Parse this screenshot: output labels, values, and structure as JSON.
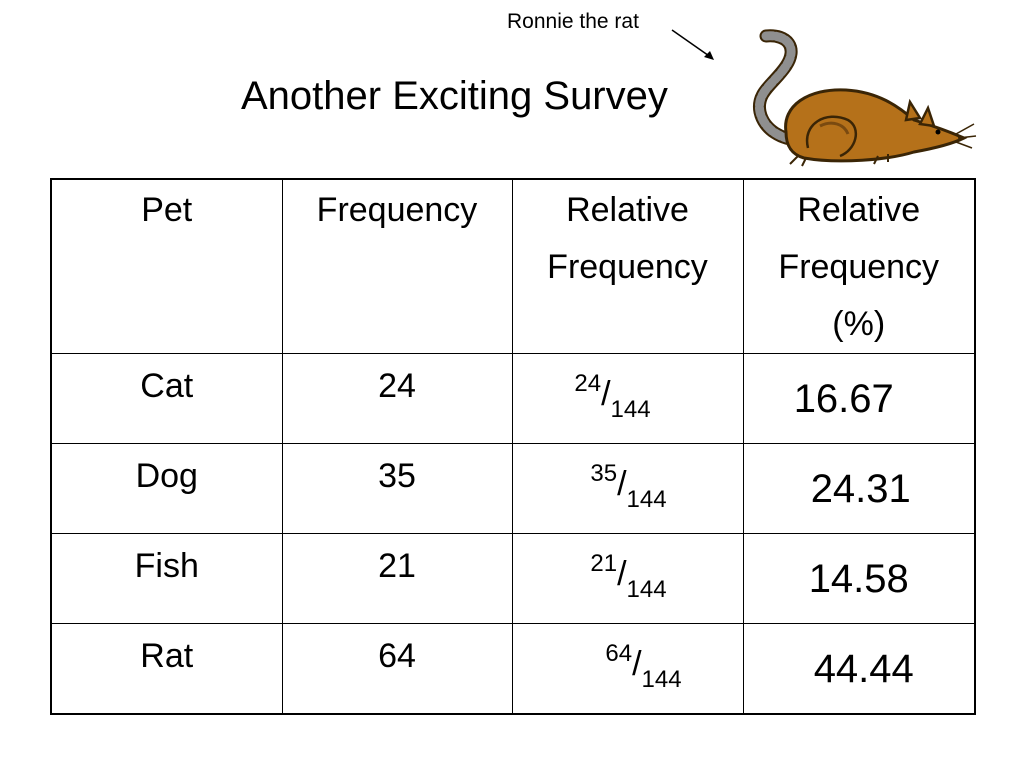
{
  "title": "Another Exciting Survey",
  "annotation": "Ronnie the rat",
  "illustration": {
    "subject": "rat-clipart",
    "colors": {
      "body": "#b5711a",
      "outline": "#3a2506",
      "tail": "#8f8f8f"
    }
  },
  "table": {
    "headers": [
      "Pet",
      "Frequency",
      "Relative\nFrequency",
      "Relative\nFrequency\n(%)"
    ],
    "rows": [
      {
        "pet": "Cat",
        "frequency": "24",
        "rel_num": "24",
        "rel_den": "144",
        "percent": "16.67"
      },
      {
        "pet": "Dog",
        "frequency": "35",
        "rel_num": "35",
        "rel_den": "144",
        "percent": "24.31"
      },
      {
        "pet": "Fish",
        "frequency": "21",
        "rel_num": "21",
        "rel_den": "144",
        "percent": "14.58"
      },
      {
        "pet": "Rat",
        "frequency": "64",
        "rel_num": "64",
        "rel_den": "144",
        "percent": "44.44"
      }
    ]
  }
}
